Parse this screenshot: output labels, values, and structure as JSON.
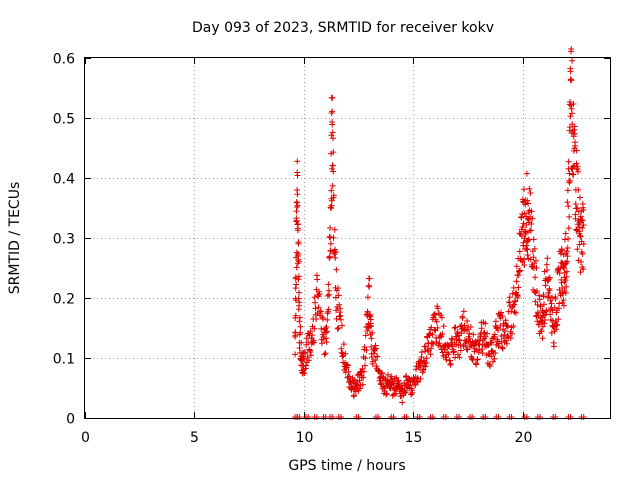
{
  "chart_data": {
    "type": "scatter",
    "title": "Day 093 of 2023, SRMTID for receiver kokv",
    "xlabel": "GPS time / hours",
    "ylabel": "SRMTID / TECUs",
    "xlim": [
      0,
      24
    ],
    "ylim": [
      0,
      0.6
    ],
    "xticks": [
      0,
      5,
      10,
      15,
      20
    ],
    "xtick_labels": [
      "0",
      "5",
      "10",
      "15",
      "20"
    ],
    "yticks": [
      0,
      0.1,
      0.2,
      0.3,
      0.4,
      0.5,
      0.6
    ],
    "ytick_labels": [
      "0",
      "0.1",
      "0.2",
      "0.3",
      "0.4",
      "0.5",
      "0.6"
    ],
    "grid": true,
    "marker": "+",
    "series": [
      {
        "name": "SRMTID",
        "color": "#e00000",
        "trace": [
          [
            9.6,
            0.12
          ],
          [
            9.65,
            0.25
          ],
          [
            9.7,
            0.36
          ],
          [
            9.75,
            0.29
          ],
          [
            9.8,
            0.15
          ],
          [
            9.9,
            0.1
          ],
          [
            10.0,
            0.09
          ],
          [
            10.2,
            0.12
          ],
          [
            10.4,
            0.14
          ],
          [
            10.6,
            0.2
          ],
          [
            10.8,
            0.15
          ],
          [
            11.0,
            0.12
          ],
          [
            11.15,
            0.22
          ],
          [
            11.25,
            0.38
          ],
          [
            11.3,
            0.5
          ],
          [
            11.38,
            0.33
          ],
          [
            11.5,
            0.2
          ],
          [
            11.7,
            0.14
          ],
          [
            11.9,
            0.09
          ],
          [
            12.1,
            0.06
          ],
          [
            12.3,
            0.05
          ],
          [
            12.5,
            0.06
          ],
          [
            12.7,
            0.07
          ],
          [
            12.9,
            0.15
          ],
          [
            13.0,
            0.2
          ],
          [
            13.1,
            0.12
          ],
          [
            13.3,
            0.1
          ],
          [
            13.5,
            0.07
          ],
          [
            13.7,
            0.05
          ],
          [
            13.9,
            0.06
          ],
          [
            14.1,
            0.05
          ],
          [
            14.3,
            0.06
          ],
          [
            14.5,
            0.04
          ],
          [
            14.7,
            0.06
          ],
          [
            14.9,
            0.05
          ],
          [
            15.1,
            0.07
          ],
          [
            15.3,
            0.08
          ],
          [
            15.5,
            0.1
          ],
          [
            15.7,
            0.12
          ],
          [
            15.9,
            0.14
          ],
          [
            16.1,
            0.16
          ],
          [
            16.3,
            0.14
          ],
          [
            16.5,
            0.12
          ],
          [
            16.7,
            0.11
          ],
          [
            16.9,
            0.13
          ],
          [
            17.1,
            0.12
          ],
          [
            17.3,
            0.15
          ],
          [
            17.5,
            0.14
          ],
          [
            17.7,
            0.12
          ],
          [
            17.9,
            0.11
          ],
          [
            18.1,
            0.14
          ],
          [
            18.3,
            0.13
          ],
          [
            18.5,
            0.1
          ],
          [
            18.7,
            0.12
          ],
          [
            18.9,
            0.15
          ],
          [
            19.1,
            0.14
          ],
          [
            19.3,
            0.16
          ],
          [
            19.5,
            0.17
          ],
          [
            19.7,
            0.2
          ],
          [
            19.85,
            0.25
          ],
          [
            20.0,
            0.3
          ],
          [
            20.1,
            0.33
          ],
          [
            20.2,
            0.34
          ],
          [
            20.3,
            0.33
          ],
          [
            20.45,
            0.28
          ],
          [
            20.6,
            0.22
          ],
          [
            20.75,
            0.17
          ],
          [
            20.9,
            0.15
          ],
          [
            21.0,
            0.2
          ],
          [
            21.15,
            0.22
          ],
          [
            21.3,
            0.18
          ],
          [
            21.45,
            0.15
          ],
          [
            21.6,
            0.2
          ],
          [
            21.75,
            0.24
          ],
          [
            21.85,
            0.22
          ],
          [
            21.95,
            0.25
          ],
          [
            22.05,
            0.3
          ],
          [
            22.15,
            0.45
          ],
          [
            22.22,
            0.55
          ],
          [
            22.3,
            0.47
          ],
          [
            22.4,
            0.4
          ],
          [
            22.5,
            0.36
          ],
          [
            22.6,
            0.32
          ],
          [
            22.7,
            0.3
          ],
          [
            22.8,
            0.29
          ]
        ],
        "zero_points": [
          9.6,
          9.7,
          10.1,
          10.5,
          10.9,
          11.2,
          11.6,
          12.4,
          13.3,
          14.0,
          14.6,
          15.2,
          15.8,
          16.4,
          17.0,
          17.6,
          18.2,
          18.8,
          19.4,
          20.1,
          20.7,
          21.4,
          22.1,
          22.7
        ]
      }
    ]
  }
}
